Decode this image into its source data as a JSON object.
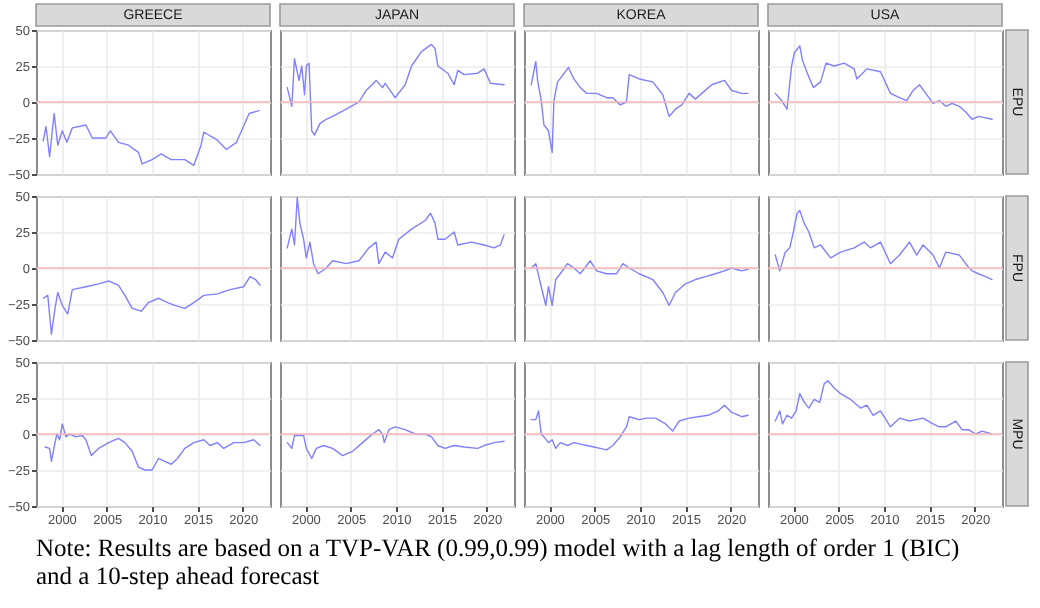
{
  "chart_data": [
    {
      "type": "line",
      "title": "GREECE",
      "xlim": [
        1997.2,
        2023
      ],
      "xticks": [
        2000,
        2005,
        2010,
        2015,
        2020
      ],
      "ylim": [
        -50,
        50
      ],
      "yticks": [
        -50,
        -25,
        0,
        25,
        50
      ],
      "grid": true,
      "tick_labels": "y",
      "ref_lines": [
        {
          "axis": "y",
          "value": 0,
          "color": "#f4b6b6"
        }
      ],
      "series": [
        {
          "color": "#8080ff",
          "x": [
            1998.0,
            1998.3,
            1998.7,
            1999.0,
            1999.2,
            1999.6,
            2000.1,
            2000.6,
            2001.2,
            2002.7,
            2003.4,
            2004.9,
            2005.4,
            2006.3,
            2007.4,
            2008.5,
            2008.9,
            2010.0,
            2011.0,
            2012.1,
            2013.6,
            2014.6,
            2015.4,
            2015.7,
            2017.1,
            2018.2,
            2019.3,
            2020.0,
            2020.7,
            2021.8
          ],
          "values": [
            -27,
            -17,
            -38,
            -20,
            -8,
            -30,
            -20,
            -28,
            -18,
            -16,
            -25,
            -25,
            -20,
            -28,
            -30,
            -35,
            -43,
            -40,
            -36,
            -40,
            -40,
            -44,
            -30,
            -21,
            -26,
            -33,
            -28,
            -18,
            -8,
            -6
          ]
        }
      ]
    },
    {
      "type": "line",
      "title": "JAPAN",
      "xlim": [
        1997.2,
        2023
      ],
      "xticks": [
        2000,
        2005,
        2010,
        2015,
        2020
      ],
      "ylim": [
        -50,
        50
      ],
      "yticks": [
        -50,
        -25,
        0,
        25,
        50
      ],
      "grid": true,
      "tick_labels": false,
      "ref_lines": [
        {
          "axis": "y",
          "value": 0,
          "color": "#f4b6b6"
        }
      ],
      "series": [
        {
          "color": "#8080ff",
          "x": [
            1998.0,
            1998.5,
            1998.8,
            1999.3,
            1999.6,
            1999.9,
            2000.1,
            2000.4,
            2000.7,
            2001.0,
            2001.6,
            2002.3,
            2003.0,
            2004.5,
            2005.9,
            2006.7,
            2007.8,
            2008.5,
            2008.8,
            2009.9,
            2011.0,
            2011.7,
            2012.8,
            2013.9,
            2014.3,
            2014.6,
            2015.7,
            2016.4,
            2016.8,
            2017.5,
            2019.0,
            2019.7,
            2020.4,
            2021.9
          ],
          "values": [
            10,
            -3,
            30,
            15,
            25,
            5,
            25,
            27,
            -20,
            -23,
            -15,
            -12,
            -10,
            -5,
            0,
            8,
            15,
            10,
            13,
            3,
            12,
            25,
            35,
            40,
            37,
            25,
            20,
            12,
            22,
            19,
            20,
            23,
            13,
            12
          ]
        }
      ]
    },
    {
      "type": "line",
      "title": "KOREA",
      "xlim": [
        1997.2,
        2023
      ],
      "xticks": [
        2000,
        2005,
        2010,
        2015,
        2020
      ],
      "ylim": [
        -50,
        50
      ],
      "yticks": [
        -50,
        -25,
        0,
        25,
        50
      ],
      "grid": true,
      "tick_labels": false,
      "ref_lines": [
        {
          "axis": "y",
          "value": 0,
          "color": "#f4b6b6"
        }
      ],
      "series": [
        {
          "color": "#8080ff",
          "x": [
            1998.0,
            1998.5,
            1998.7,
            1999.1,
            1999.4,
            1999.9,
            2000.3,
            2000.5,
            2000.9,
            2001.4,
            2002.1,
            2002.7,
            2003.4,
            2004.1,
            2005.2,
            2006.3,
            2007.0,
            2007.8,
            2008.5,
            2008.8,
            2009.9,
            2011.4,
            2012.5,
            2013.2,
            2013.9,
            2014.6,
            2015.4,
            2016.1,
            2016.8,
            2017.9,
            2019.3,
            2020.1,
            2021.2,
            2021.9
          ],
          "values": [
            12,
            28,
            15,
            1,
            -16,
            -20,
            -35,
            1,
            14,
            18,
            24,
            16,
            10,
            6,
            6,
            3,
            3,
            -2,
            0,
            19,
            16,
            14,
            5,
            -10,
            -5,
            -2,
            6,
            2,
            6,
            12,
            15,
            8,
            6,
            6
          ]
        }
      ]
    },
    {
      "type": "line",
      "title": "USA",
      "y2label": "EPU",
      "xlim": [
        1997.2,
        2023
      ],
      "xticks": [
        2000,
        2005,
        2010,
        2015,
        2020
      ],
      "ylim": [
        -50,
        50
      ],
      "yticks": [
        -50,
        -25,
        0,
        25,
        50
      ],
      "grid": true,
      "tick_labels": false,
      "ref_lines": [
        {
          "axis": "y",
          "value": 0,
          "color": "#f4b6b6"
        }
      ],
      "series": [
        {
          "color": "#8080ff",
          "x": [
            1998.0,
            1998.7,
            1999.3,
            1999.8,
            2000.1,
            2000.7,
            2001.0,
            2001.6,
            2002.2,
            2003.0,
            2003.6,
            2004.5,
            2005.6,
            2006.7,
            2007.0,
            2008.1,
            2009.6,
            2010.7,
            2011.7,
            2012.5,
            2013.2,
            2013.9,
            2014.6,
            2015.4,
            2016.1,
            2016.8,
            2017.5,
            2018.3,
            2019.0,
            2019.7,
            2020.4,
            2021.2,
            2021.9
          ],
          "values": [
            6,
            1,
            -5,
            25,
            34,
            39,
            29,
            19,
            10,
            14,
            27,
            25,
            27,
            23,
            16,
            23,
            21,
            6,
            3,
            1,
            8,
            12,
            6,
            -1,
            1,
            -3,
            -1,
            -3,
            -7,
            -12,
            -10,
            -11,
            -12
          ]
        }
      ]
    },
    {
      "type": "line",
      "xlim": [
        1997.2,
        2023
      ],
      "xticks": [
        2000,
        2005,
        2010,
        2015,
        2020
      ],
      "ylim": [
        -50,
        50
      ],
      "yticks": [
        -50,
        -25,
        0,
        25,
        50
      ],
      "grid": true,
      "tick_labels": "y",
      "ref_lines": [
        {
          "axis": "y",
          "value": 0,
          "color": "#f4b6b6"
        }
      ],
      "series": [
        {
          "color": "#8080ff",
          "x": [
            1998.0,
            1998.5,
            1998.9,
            1999.3,
            1999.6,
            2000.1,
            2000.7,
            2001.2,
            2002.7,
            2004.1,
            2005.2,
            2006.3,
            2007.0,
            2007.8,
            2008.8,
            2009.6,
            2010.7,
            2011.7,
            2012.5,
            2013.6,
            2014.6,
            2015.7,
            2017.2,
            2018.6,
            2020.1,
            2020.8,
            2021.4,
            2021.9
          ],
          "values": [
            -21,
            -19,
            -46,
            -28,
            -17,
            -26,
            -32,
            -15,
            -13,
            -11,
            -9,
            -12,
            -19,
            -28,
            -30,
            -24,
            -21,
            -24,
            -26,
            -28,
            -24,
            -19,
            -18,
            -15,
            -13,
            -6,
            -8,
            -12
          ]
        }
      ]
    },
    {
      "type": "line",
      "xlim": [
        1997.2,
        2023
      ],
      "xticks": [
        2000,
        2005,
        2010,
        2015,
        2020
      ],
      "ylim": [
        -50,
        50
      ],
      "yticks": [
        -50,
        -25,
        0,
        25,
        50
      ],
      "grid": true,
      "tick_labels": false,
      "ref_lines": [
        {
          "axis": "y",
          "value": 0,
          "color": "#f4b6b6"
        }
      ],
      "series": [
        {
          "color": "#8080ff",
          "x": [
            1998.0,
            1998.5,
            1998.8,
            1999.1,
            1999.4,
            1999.8,
            2000.1,
            2000.5,
            2000.9,
            2001.4,
            2002.3,
            2003.0,
            2004.5,
            2005.9,
            2007.0,
            2007.8,
            2008.1,
            2008.8,
            2009.6,
            2010.3,
            2011.7,
            2013.2,
            2013.8,
            2014.3,
            2014.6,
            2015.4,
            2016.4,
            2016.8,
            2018.3,
            2019.7,
            2020.8,
            2021.5,
            2021.9
          ],
          "values": [
            14,
            27,
            16,
            49,
            31,
            20,
            7,
            18,
            3,
            -4,
            0,
            5,
            3,
            5,
            14,
            18,
            3,
            11,
            7,
            20,
            27,
            33,
            38,
            31,
            20,
            20,
            25,
            16,
            18,
            16,
            14,
            16,
            23
          ]
        }
      ]
    },
    {
      "type": "line",
      "xlim": [
        1997.2,
        2023
      ],
      "xticks": [
        2000,
        2005,
        2010,
        2015,
        2020
      ],
      "ylim": [
        -50,
        50
      ],
      "yticks": [
        -50,
        -25,
        0,
        25,
        50
      ],
      "grid": true,
      "tick_labels": false,
      "ref_lines": [
        {
          "axis": "y",
          "value": 0,
          "color": "#f4b6b6"
        }
      ],
      "series": [
        {
          "color": "#8080ff",
          "x": [
            1998.0,
            1998.5,
            1999.1,
            1999.6,
            1999.9,
            2000.3,
            2000.7,
            2001.2,
            2002.0,
            2002.7,
            2003.4,
            2004.5,
            2005.2,
            2006.3,
            2007.4,
            2008.1,
            2008.8,
            2009.9,
            2011.4,
            2012.5,
            2013.2,
            2013.9,
            2015.0,
            2016.1,
            2017.2,
            2018.3,
            2019.3,
            2020.1,
            2021.2,
            2021.9
          ],
          "values": [
            0,
            3,
            -13,
            -26,
            -13,
            -26,
            -8,
            -4,
            3,
            0,
            -4,
            5,
            -2,
            -4,
            -4,
            3,
            0,
            -4,
            -8,
            -17,
            -26,
            -17,
            -11,
            -8,
            -6,
            -4,
            -2,
            0,
            -2,
            -1
          ]
        }
      ]
    },
    {
      "type": "line",
      "y2label": "FPU",
      "xlim": [
        1997.2,
        2023
      ],
      "xticks": [
        2000,
        2005,
        2010,
        2015,
        2020
      ],
      "ylim": [
        -50,
        50
      ],
      "yticks": [
        -50,
        -25,
        0,
        25,
        50
      ],
      "grid": true,
      "tick_labels": false,
      "ref_lines": [
        {
          "axis": "y",
          "value": 0,
          "color": "#f4b6b6"
        }
      ],
      "series": [
        {
          "color": "#8080ff",
          "x": [
            1998.0,
            1998.5,
            1999.1,
            1999.6,
            2000.0,
            2000.4,
            2000.7,
            2001.2,
            2001.7,
            2002.3,
            2003.0,
            2004.1,
            2005.2,
            2006.7,
            2007.8,
            2008.5,
            2009.6,
            2010.7,
            2011.7,
            2012.8,
            2013.6,
            2014.3,
            2015.4,
            2016.1,
            2016.8,
            2018.3,
            2019.0,
            2019.7,
            2020.4,
            2021.2,
            2021.9
          ],
          "values": [
            9,
            -2,
            11,
            14,
            25,
            38,
            40,
            31,
            25,
            14,
            16,
            7,
            11,
            14,
            18,
            14,
            18,
            3,
            9,
            18,
            9,
            16,
            9,
            0,
            11,
            9,
            3,
            -2,
            -4,
            -6,
            -8
          ]
        }
      ]
    },
    {
      "type": "line",
      "xlim": [
        1997.2,
        2023
      ],
      "xticks": [
        2000,
        2005,
        2010,
        2015,
        2020
      ],
      "ylim": [
        -50,
        50
      ],
      "yticks": [
        -50,
        -25,
        0,
        25,
        50
      ],
      "grid": true,
      "ref_lines": [
        {
          "axis": "y",
          "value": 0,
          "color": "#f4b6b6"
        }
      ],
      "series": [
        {
          "color": "#8080ff",
          "x": [
            1998.2,
            1998.7,
            1998.9,
            1999.3,
            1999.5,
            1999.8,
            2000.1,
            2000.5,
            2000.9,
            2001.6,
            2002.3,
            2002.7,
            2003.3,
            2004.1,
            2005.2,
            2006.3,
            2007.0,
            2007.8,
            2008.5,
            2009.2,
            2010.0,
            2010.7,
            2011.4,
            2012.1,
            2012.8,
            2013.6,
            2014.6,
            2015.7,
            2016.4,
            2017.2,
            2017.9,
            2019.0,
            2020.1,
            2021.2,
            2021.9
          ],
          "values": [
            -9,
            -10,
            -19,
            -6,
            0,
            -4,
            7,
            -2,
            0,
            -2,
            -1,
            -4,
            -15,
            -10,
            -6,
            -3,
            -6,
            -12,
            -23,
            -25,
            -25,
            -17,
            -19,
            -21,
            -17,
            -10,
            -6,
            -4,
            -8,
            -6,
            -10,
            -6,
            -6,
            -4,
            -8
          ]
        }
      ]
    },
    {
      "type": "line",
      "xlim": [
        1997.2,
        2023
      ],
      "xticks": [
        2000,
        2005,
        2010,
        2015,
        2020
      ],
      "ylim": [
        -50,
        50
      ],
      "yticks": [
        -50,
        -25,
        0,
        25,
        50
      ],
      "grid": true,
      "tick_labels": "x",
      "ref_lines": [
        {
          "axis": "y",
          "value": 0,
          "color": "#f4b6b6"
        }
      ],
      "series": [
        {
          "color": "#8080ff",
          "x": [
            1998.0,
            1998.5,
            1998.8,
            1999.8,
            2000.1,
            2000.7,
            2001.2,
            2002.0,
            2003.0,
            2004.1,
            2005.2,
            2006.3,
            2007.4,
            2008.1,
            2008.5,
            2008.7,
            2009.2,
            2009.9,
            2011.0,
            2012.1,
            2013.2,
            2013.9,
            2014.6,
            2015.4,
            2016.4,
            2017.5,
            2019.0,
            2019.7,
            2020.8,
            2021.9
          ],
          "values": [
            -6,
            -10,
            -1,
            -1,
            -10,
            -17,
            -10,
            -8,
            -10,
            -15,
            -12,
            -6,
            0,
            3,
            0,
            -6,
            3,
            5,
            3,
            0,
            0,
            -2,
            -8,
            -10,
            -8,
            -9,
            -10,
            -8,
            -6,
            -5
          ]
        }
      ]
    },
    {
      "type": "line",
      "xlim": [
        1997.2,
        2023
      ],
      "xticks": [
        2000,
        2005,
        2010,
        2015,
        2020
      ],
      "ylim": [
        -50,
        50
      ],
      "yticks": [
        -50,
        -25,
        0,
        25,
        50
      ],
      "grid": true,
      "tick_labels": "x",
      "ref_lines": [
        {
          "axis": "y",
          "value": 0,
          "color": "#f4b6b6"
        }
      ],
      "series": [
        {
          "color": "#8080ff",
          "x": [
            1998.0,
            1998.5,
            1998.8,
            1999.1,
            1999.4,
            1999.9,
            2000.3,
            2000.7,
            2001.2,
            2002.0,
            2002.7,
            2003.4,
            2004.1,
            2004.9,
            2005.6,
            2006.3,
            2007.0,
            2007.8,
            2008.5,
            2008.8,
            2009.9,
            2010.7,
            2011.7,
            2012.8,
            2013.6,
            2014.3,
            2015.4,
            2016.4,
            2017.5,
            2018.6,
            2019.3,
            2020.1,
            2021.2,
            2021.9
          ],
          "values": [
            10,
            10,
            16,
            0,
            -2,
            -6,
            -4,
            -10,
            -6,
            -8,
            -6,
            -7,
            -8,
            -9,
            -10,
            -11,
            -8,
            -2,
            5,
            12,
            10,
            11,
            11,
            7,
            2,
            9,
            11,
            12,
            13,
            16,
            20,
            15,
            12,
            13
          ]
        }
      ]
    },
    {
      "type": "line",
      "y2label": "MPU",
      "xlim": [
        1997.2,
        2023
      ],
      "xticks": [
        2000,
        2005,
        2010,
        2015,
        2020
      ],
      "ylim": [
        -50,
        50
      ],
      "yticks": [
        -50,
        -25,
        0,
        25,
        50
      ],
      "grid": true,
      "tick_labels": "x",
      "ref_lines": [
        {
          "axis": "y",
          "value": 0,
          "color": "#f4b6b6"
        }
      ],
      "series": [
        {
          "color": "#8080ff",
          "x": [
            1998.0,
            1998.5,
            1998.8,
            1999.3,
            1999.8,
            2000.3,
            2000.7,
            2001.2,
            2001.7,
            2002.3,
            2002.9,
            2003.4,
            2003.8,
            2004.5,
            2005.2,
            2006.3,
            2007.4,
            2008.1,
            2008.8,
            2009.6,
            2010.7,
            2011.7,
            2012.8,
            2014.3,
            2015.4,
            2016.1,
            2016.8,
            2017.9,
            2018.6,
            2019.3,
            2020.1,
            2020.8,
            2021.9
          ],
          "values": [
            9,
            16,
            7,
            13,
            11,
            16,
            28,
            22,
            18,
            24,
            22,
            35,
            37,
            32,
            28,
            24,
            18,
            20,
            13,
            16,
            5,
            11,
            9,
            11,
            7,
            5,
            5,
            9,
            3,
            3,
            0,
            2,
            0
          ]
        }
      ]
    },
    {
      "type": "other",
      "annotations": [
        "Note: Results are based on a TVP-VAR (0.99,0.99) model with a lag length of order 1 (BIC) and a 10-step ahead forecast"
      ]
    }
  ]
}
